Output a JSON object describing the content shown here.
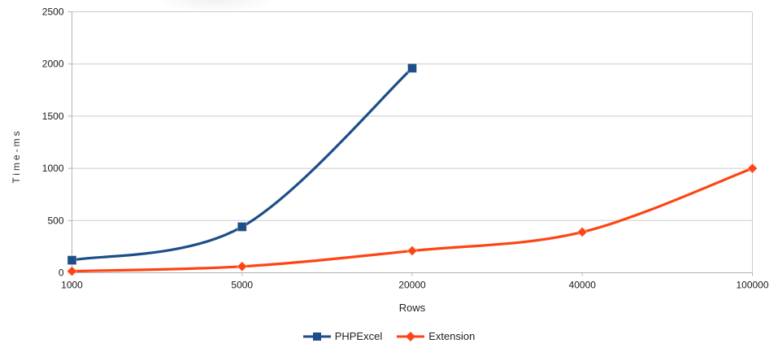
{
  "chart_data": {
    "type": "line",
    "categories": [
      "1000",
      "5000",
      "20000",
      "40000",
      "100000"
    ],
    "series": [
      {
        "name": "PHPExcel",
        "color": "#1d4e89",
        "marker": "square",
        "values": [
          120,
          440,
          1960,
          null,
          null
        ]
      },
      {
        "name": "Extension",
        "color": "#fd4513",
        "marker": "diamond",
        "values": [
          15,
          60,
          210,
          390,
          1000
        ]
      }
    ],
    "xlabel": "Rows",
    "ylabel": "Time-ms",
    "ylim": [
      0,
      2500
    ],
    "yticks": [
      0,
      500,
      1000,
      1500,
      2000,
      2500
    ],
    "grid": "horizontal",
    "line_style": "smooth",
    "legend_position": "bottom",
    "grid_color": "#cccccc",
    "axis_color": "#b3b3b3"
  }
}
